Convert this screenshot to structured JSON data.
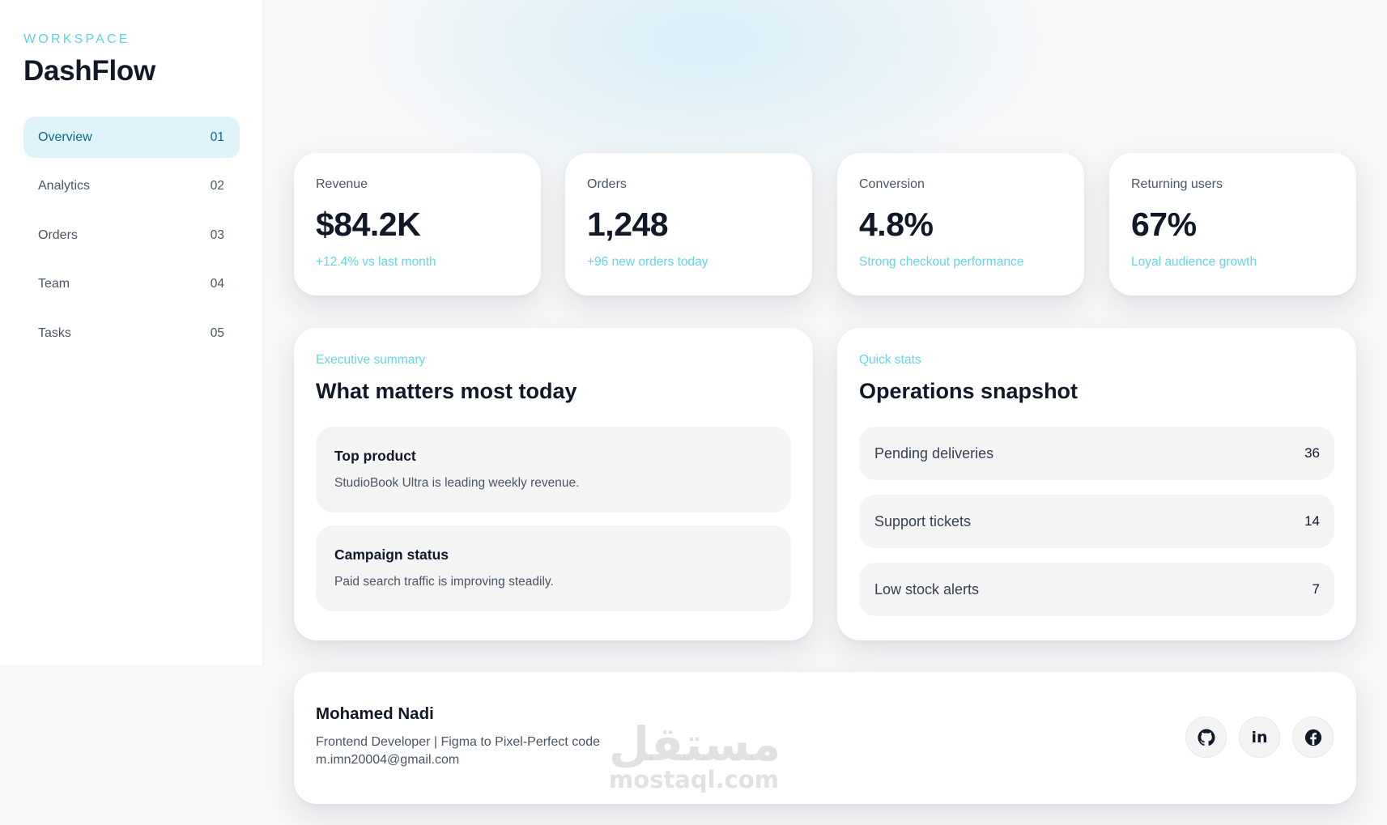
{
  "sidebar": {
    "workspace_label": "WORKSPACE",
    "brand": "DashFlow",
    "items": [
      {
        "label": "Overview",
        "num": "01",
        "active": true
      },
      {
        "label": "Analytics",
        "num": "02"
      },
      {
        "label": "Orders",
        "num": "03"
      },
      {
        "label": "Team",
        "num": "04"
      },
      {
        "label": "Tasks",
        "num": "05"
      }
    ]
  },
  "stats": [
    {
      "label": "Revenue",
      "value": "$84.2K",
      "note": "+12.4% vs last month"
    },
    {
      "label": "Orders",
      "value": "1,248",
      "note": "+96 new orders today"
    },
    {
      "label": "Conversion",
      "value": "4.8%",
      "note": "Strong checkout performance"
    },
    {
      "label": "Returning users",
      "value": "67%",
      "note": "Loyal audience growth"
    }
  ],
  "summary": {
    "eyebrow": "Executive summary",
    "title": "What matters most today",
    "items": [
      {
        "title": "Top product",
        "text": "StudioBook Ultra is leading weekly revenue."
      },
      {
        "title": "Campaign status",
        "text": "Paid search traffic is improving steadily."
      }
    ]
  },
  "snapshot": {
    "eyebrow": "Quick stats",
    "title": "Operations snapshot",
    "rows": [
      {
        "label": "Pending deliveries",
        "value": "36"
      },
      {
        "label": "Support tickets",
        "value": "14"
      },
      {
        "label": "Low stock alerts",
        "value": "7"
      }
    ]
  },
  "footer": {
    "name": "Mohamed Nadi",
    "role": "Frontend Developer | Figma to Pixel-Perfect code",
    "email": "m.imn20004@gmail.com",
    "socials": [
      {
        "icon": "github-icon"
      },
      {
        "icon": "linkedin-icon",
        "text": "in"
      },
      {
        "icon": "facebook-icon"
      }
    ]
  },
  "watermark": {
    "arabic": "مستقل",
    "latin": "mostaql.com"
  },
  "colors": {
    "accent": "#67d6e2",
    "active_bg": "#e0f3fb",
    "active_text": "#0f6a8f",
    "box_bg": "#f4f4f5"
  }
}
